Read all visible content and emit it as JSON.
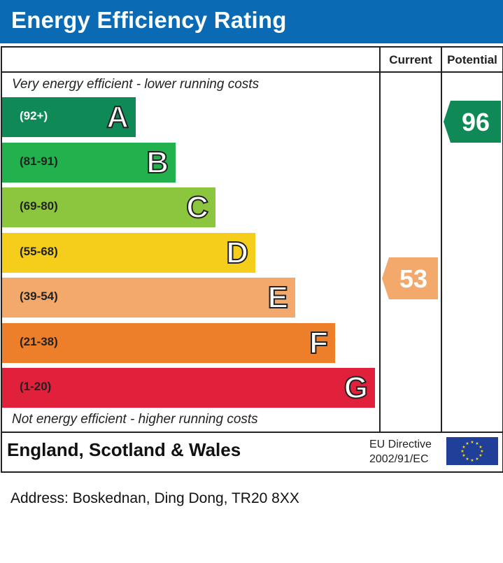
{
  "title": "Energy Efficiency Rating",
  "columns": {
    "current": "Current",
    "potential": "Potential"
  },
  "top_note": "Very energy efficient - lower running costs",
  "bottom_note": "Not energy efficient - higher running costs",
  "region": "England, Scotland & Wales",
  "eu_directive": {
    "line1": "EU Directive",
    "line2": "2002/91/EC"
  },
  "address": "Address: Boskednan, Ding Dong, TR20 8XX",
  "chart_data": {
    "type": "bar",
    "categories": [
      "A",
      "B",
      "C",
      "D",
      "E",
      "F",
      "G"
    ],
    "bands": [
      {
        "letter": "A",
        "range": "(92+)",
        "color": "#0f8a57"
      },
      {
        "letter": "B",
        "range": "(81-91)",
        "color": "#22b14c"
      },
      {
        "letter": "C",
        "range": "(69-80)",
        "color": "#8cc63f"
      },
      {
        "letter": "D",
        "range": "(55-68)",
        "color": "#f5cd1b"
      },
      {
        "letter": "E",
        "range": "(39-54)",
        "color": "#f2a96b"
      },
      {
        "letter": "F",
        "range": "(21-38)",
        "color": "#ee7f2a"
      },
      {
        "letter": "G",
        "range": "(1-20)",
        "color": "#e1213c"
      }
    ],
    "current": {
      "value": 53,
      "band": "E",
      "color": "#f2a96b"
    },
    "potential": {
      "value": 96,
      "band": "A",
      "color": "#0f8a57"
    }
  }
}
